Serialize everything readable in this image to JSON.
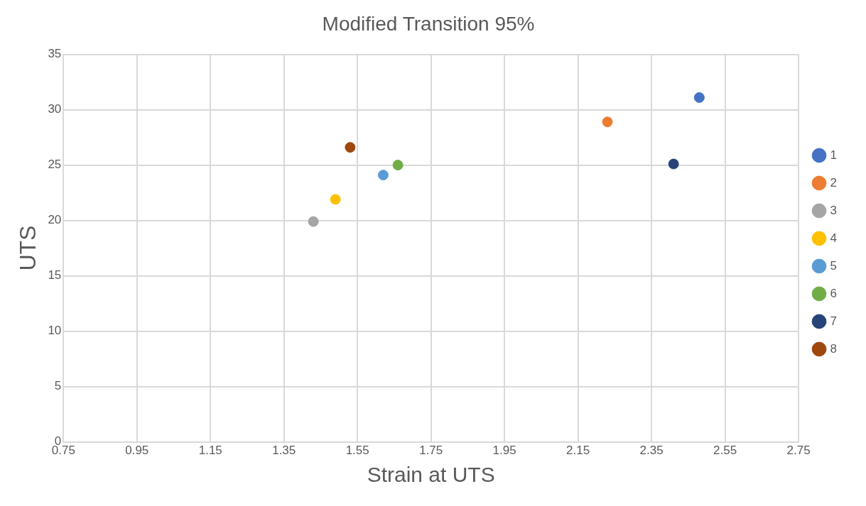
{
  "chart_data": {
    "type": "scatter",
    "title": "Modified Transition 95%",
    "xlabel": "Strain at UTS",
    "ylabel": "UTS",
    "xlim": [
      0.75,
      2.75
    ],
    "xticks": [
      {
        "value": 0.75,
        "label": "0.75"
      },
      {
        "value": 0.95,
        "label": "0.95"
      },
      {
        "value": 1.15,
        "label": "1.15"
      },
      {
        "value": 1.35,
        "label": "1.35"
      },
      {
        "value": 1.55,
        "label": "1.55"
      },
      {
        "value": 1.75,
        "label": "1.75"
      },
      {
        "value": 1.95,
        "label": "1.95"
      },
      {
        "value": 2.15,
        "label": "2.15"
      },
      {
        "value": 2.35,
        "label": "2.35"
      },
      {
        "value": 2.55,
        "label": "2.55"
      },
      {
        "value": 2.75,
        "label": "2.75"
      }
    ],
    "ylim": [
      0,
      35
    ],
    "yticks": [
      0,
      5,
      10,
      15,
      20,
      25,
      30,
      35
    ],
    "grid": true,
    "legend": "right",
    "marker": "circle",
    "series": [
      {
        "name": "1",
        "color": "#4472c4",
        "x": [
          2.48
        ],
        "values": [
          31.1
        ]
      },
      {
        "name": "2",
        "color": "#ed7d31",
        "x": [
          2.23
        ],
        "values": [
          28.9
        ]
      },
      {
        "name": "3",
        "color": "#a5a5a5",
        "x": [
          1.43
        ],
        "values": [
          19.9
        ]
      },
      {
        "name": "4",
        "color": "#ffc000",
        "x": [
          1.49
        ],
        "values": [
          21.9
        ]
      },
      {
        "name": "5",
        "color": "#5b9bd5",
        "x": [
          1.62
        ],
        "values": [
          24.1
        ]
      },
      {
        "name": "6",
        "color": "#70ad47",
        "x": [
          1.66
        ],
        "values": [
          25.0
        ]
      },
      {
        "name": "7",
        "color": "#264478",
        "x": [
          2.41
        ],
        "values": [
          25.1
        ]
      },
      {
        "name": "8",
        "color": "#9e480e",
        "x": [
          1.53
        ],
        "values": [
          26.6
        ]
      }
    ]
  }
}
